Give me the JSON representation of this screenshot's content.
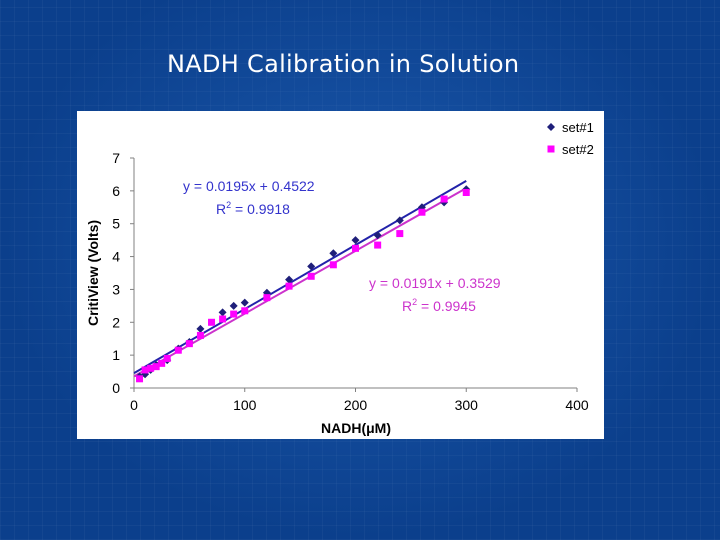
{
  "slide": {
    "title": "NADH Calibration in Solution"
  },
  "colors": {
    "series1": "#1f1f7a",
    "series2": "#ff00ff",
    "line1": "#2222aa",
    "line2": "#cc33cc"
  },
  "chart_data": {
    "type": "scatter",
    "xlabel": "NADH(μM)",
    "ylabel": "CritiView (Volts)",
    "xlim": [
      0,
      400
    ],
    "ylim": [
      0,
      7
    ],
    "xticks": [
      0,
      100,
      200,
      300,
      400
    ],
    "yticks": [
      0,
      1,
      2,
      3,
      4,
      5,
      6,
      7
    ],
    "grid": false,
    "legend": "top-right",
    "series": [
      {
        "name": "set#1",
        "marker": "diamond",
        "x": [
          5,
          10,
          15,
          20,
          30,
          40,
          50,
          60,
          80,
          90,
          100,
          120,
          140,
          160,
          180,
          200,
          220,
          240,
          260,
          280,
          300
        ],
        "y": [
          0.35,
          0.42,
          0.55,
          0.7,
          0.85,
          1.2,
          1.4,
          1.8,
          2.3,
          2.5,
          2.6,
          2.9,
          3.3,
          3.7,
          4.1,
          4.5,
          4.65,
          5.1,
          5.5,
          5.65,
          6.05
        ],
        "trendline": {
          "slope": 0.0195,
          "intercept": 0.4522,
          "x_range": [
            0,
            300
          ]
        },
        "equation": "y = 0.0195x + 0.4522",
        "r2_label": "R",
        "r2_exp": "2",
        "r2_value": " = 0.9918"
      },
      {
        "name": "set#2",
        "marker": "square",
        "x": [
          5,
          10,
          15,
          20,
          25,
          30,
          40,
          50,
          60,
          70,
          80,
          90,
          100,
          120,
          140,
          160,
          180,
          200,
          220,
          240,
          260,
          280,
          300
        ],
        "y": [
          0.28,
          0.55,
          0.6,
          0.65,
          0.75,
          0.9,
          1.15,
          1.35,
          1.6,
          2.0,
          2.1,
          2.25,
          2.35,
          2.75,
          3.1,
          3.4,
          3.75,
          4.25,
          4.35,
          4.7,
          5.35,
          5.75,
          5.95
        ],
        "trendline": {
          "slope": 0.0191,
          "intercept": 0.3529,
          "x_range": [
            0,
            300
          ]
        },
        "equation": "y = 0.0191x + 0.3529",
        "r2_label": "R",
        "r2_exp": "2",
        "r2_value": " = 0.9945"
      }
    ]
  }
}
